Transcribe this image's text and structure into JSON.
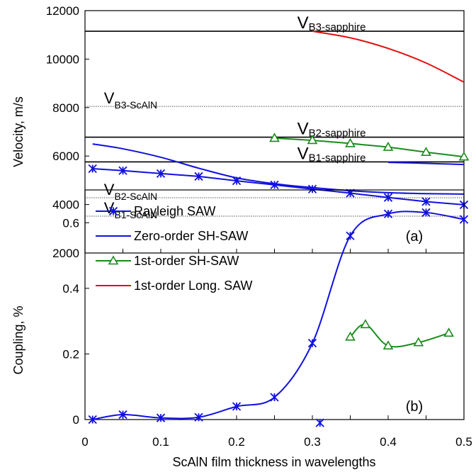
{
  "chart_data": [
    {
      "type": "line",
      "panel_label": "(a)",
      "ylabel": "Velocity, m/s",
      "xlim": [
        0,
        0.5
      ],
      "ylim": [
        2000,
        12000
      ],
      "yticks": [
        "2000",
        "4000",
        "6000",
        "8000",
        "10000",
        "12000"
      ],
      "reference_lines": [
        {
          "label_main": "V",
          "label_sub": "B3-sapphire",
          "y": 11150,
          "style": "solid",
          "label_x": 0.28,
          "big": true
        },
        {
          "label_main": "V",
          "label_sub": "B3-ScAlN",
          "y": 8050,
          "style": "dotted",
          "label_x": 0.025,
          "big": false
        },
        {
          "label_main": "V",
          "label_sub": "B2-sapphire",
          "y": 6780,
          "style": "solid",
          "label_x": 0.28,
          "big": true
        },
        {
          "label_main": "V",
          "label_sub": "B1-sapphire",
          "y": 5760,
          "style": "solid",
          "label_x": 0.28,
          "big": true
        },
        {
          "label_main": "V",
          "label_sub": "B2-ScAlN",
          "y": 4280,
          "style": "dotted",
          "label_x": 0.025,
          "big": false
        },
        {
          "label_main": "V",
          "label_sub": "B1-ScAlN",
          "y": 3520,
          "style": "dotted",
          "label_x": 0.025,
          "big": false
        }
      ],
      "series": [
        {
          "color": "#1010e0",
          "marker": "asterisk",
          "x": [
            0.01,
            0.05,
            0.1,
            0.15,
            0.2,
            0.25,
            0.3,
            0.35,
            0.4,
            0.45,
            0.5
          ],
          "y": [
            5480,
            5400,
            5280,
            5160,
            4980,
            4810,
            4640,
            4470,
            4290,
            4120,
            3990
          ]
        },
        {
          "color": "#1010e0",
          "marker": "none",
          "x": [
            0.01,
            0.05,
            0.1,
            0.15,
            0.2,
            0.25,
            0.3,
            0.35,
            0.4,
            0.45,
            0.5
          ],
          "y": [
            6500,
            6300,
            5950,
            5500,
            5100,
            4860,
            4700,
            4570,
            4490,
            4450,
            4430
          ]
        },
        {
          "color": "#1010e0",
          "marker": "none",
          "x": [
            0.4,
            0.45,
            0.5
          ],
          "y": [
            5740,
            5700,
            5650
          ]
        },
        {
          "color": "#1a8c1a",
          "marker": "triangle",
          "x": [
            0.25,
            0.3,
            0.35,
            0.4,
            0.45,
            0.5
          ],
          "y": [
            6740,
            6650,
            6520,
            6370,
            6160,
            5970
          ]
        },
        {
          "color": "#e01010",
          "marker": "none",
          "x": [
            0.3,
            0.35,
            0.4,
            0.45,
            0.5
          ],
          "y": [
            11150,
            10880,
            10440,
            9840,
            9050
          ]
        }
      ]
    },
    {
      "type": "line",
      "panel_label": "(b)",
      "xlabel": "ScAlN film thickness in wavelengths",
      "ylabel": "Coupling, %",
      "xlim": [
        0,
        0.5
      ],
      "ylim": [
        0,
        0.7
      ],
      "xticks": [
        "0",
        "0.1",
        "0.2",
        "0.3",
        "0.4",
        "0.5"
      ],
      "yticks": [
        "0",
        "0.2",
        "0.4",
        "0.6"
      ],
      "legend_position": "top-left",
      "series": [
        {
          "name": "Rayleigh SAW",
          "color": "#1010e0",
          "marker": "asterisk",
          "show_markers": true,
          "x": [
            0.01,
            0.05,
            0.1,
            0.15,
            0.2,
            0.25,
            0.3,
            0.35,
            0.4,
            0.45,
            0.5
          ],
          "y": [
            0.0,
            0.015,
            0.005,
            0.007,
            0.04,
            0.068,
            0.233,
            0.56,
            0.627,
            0.631,
            0.61
          ]
        },
        {
          "name": "Zero-order SH-SAW",
          "color": "#1010e0",
          "marker": "asterisk",
          "show_markers": false,
          "x": [
            0.31
          ],
          "y": [
            -0.01
          ]
        },
        {
          "name": "1st-order SH-SAW",
          "color": "#1a8c1a",
          "marker": "triangle",
          "show_markers": true,
          "x": [
            0.35,
            0.37,
            0.4,
            0.44,
            0.48
          ],
          "y": [
            0.252,
            0.29,
            0.225,
            0.235,
            0.264
          ]
        },
        {
          "name": "1st-order Long. SAW",
          "color": "#e01010",
          "marker": "none",
          "show_markers": false,
          "x": [],
          "y": []
        }
      ]
    }
  ]
}
